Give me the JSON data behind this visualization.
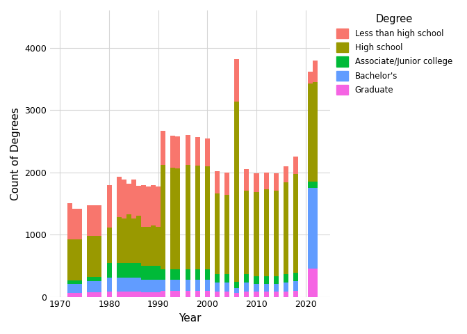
{
  "years": [
    1972,
    1973,
    1974,
    1976,
    1977,
    1978,
    1980,
    1982,
    1983,
    1984,
    1985,
    1986,
    1987,
    1988,
    1989,
    1990,
    1991,
    1993,
    1994,
    1996,
    1998,
    2000,
    2002,
    2004,
    2006,
    2008,
    2010,
    2012,
    2014,
    2016,
    2018,
    2021,
    2022
  ],
  "less_than_hs": [
    580,
    490,
    490,
    490,
    490,
    490,
    680,
    650,
    620,
    500,
    620,
    480,
    680,
    650,
    650,
    650,
    550,
    520,
    520,
    480,
    460,
    440,
    360,
    360,
    680,
    340,
    310,
    270,
    280,
    260,
    280,
    190,
    350
  ],
  "high_school": [
    660,
    660,
    660,
    660,
    660,
    660,
    570,
    740,
    720,
    780,
    720,
    760,
    620,
    620,
    650,
    620,
    1680,
    1630,
    1620,
    1680,
    1670,
    1660,
    1300,
    1280,
    2900,
    1350,
    1350,
    1400,
    1380,
    1480,
    1580,
    1580,
    1600
  ],
  "associate": [
    55,
    55,
    55,
    70,
    70,
    70,
    230,
    230,
    230,
    230,
    230,
    230,
    230,
    230,
    230,
    230,
    170,
    170,
    170,
    170,
    170,
    170,
    130,
    130,
    100,
    130,
    120,
    120,
    120,
    130,
    140,
    100,
    100
  ],
  "bachelors": [
    150,
    150,
    150,
    180,
    180,
    180,
    230,
    230,
    230,
    230,
    230,
    230,
    200,
    200,
    200,
    200,
    170,
    170,
    170,
    170,
    170,
    170,
    140,
    140,
    80,
    140,
    130,
    130,
    130,
    140,
    150,
    1300,
    1300
  ],
  "graduate": [
    60,
    60,
    60,
    70,
    70,
    70,
    80,
    80,
    80,
    80,
    80,
    80,
    70,
    70,
    70,
    70,
    100,
    100,
    100,
    100,
    100,
    100,
    90,
    90,
    60,
    90,
    80,
    80,
    80,
    90,
    100,
    450,
    450
  ],
  "colors": {
    "less_than_hs": "#F8766D",
    "high_school": "#999900",
    "associate": "#00BA38",
    "bachelors": "#619CFF",
    "graduate": "#F564E3"
  },
  "legend_labels": [
    "Less than high school",
    "High school",
    "Associate/Junior college",
    "Bachelor's",
    "Graduate"
  ],
  "xlabel": "Year",
  "ylabel": "Count of Degrees",
  "ylim": [
    0,
    4600
  ],
  "yticks": [
    0,
    1000,
    2000,
    3000,
    4000
  ],
  "xticks": [
    1970,
    1980,
    1990,
    2000,
    2010,
    2020
  ],
  "bg_color": "#ffffff",
  "grid_color": "#d3d3d3"
}
